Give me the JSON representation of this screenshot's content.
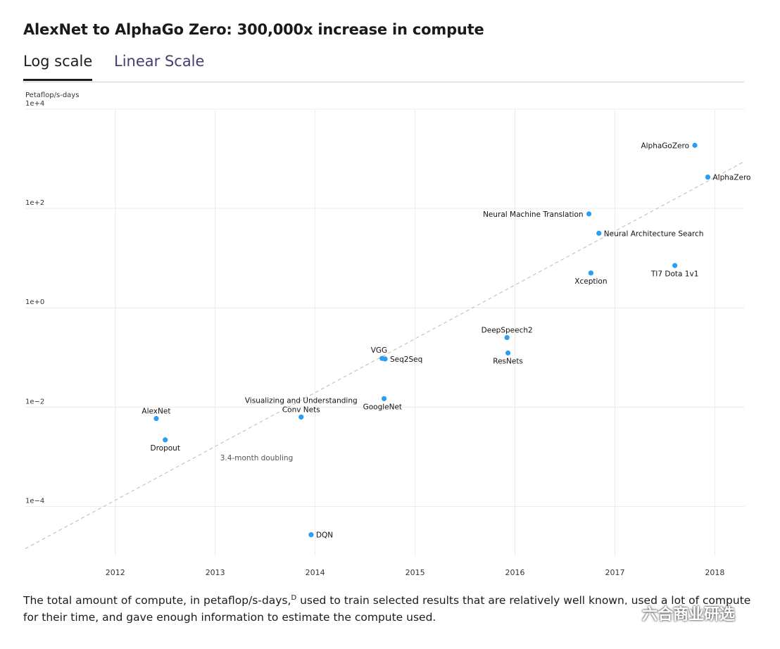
{
  "title": "AlexNet to AlphaGo Zero: 300,000x increase in compute",
  "tabs": [
    {
      "label": "Log scale",
      "active": true
    },
    {
      "label": "Linear Scale",
      "active": false
    }
  ],
  "chart_data": {
    "type": "scatter",
    "ylabel": "Petaflop/s-days",
    "yscale": "log",
    "ylim_exp": [
      -5.0,
      4
    ],
    "xlim": [
      2011.1,
      2018.3
    ],
    "x_ticks": [
      2012,
      2013,
      2014,
      2015,
      2016,
      2017,
      2018
    ],
    "y_ticks": [
      {
        "exp": 4,
        "label": "1e+4"
      },
      {
        "exp": 2,
        "label": "1e+2"
      },
      {
        "exp": 0,
        "label": "1e+0"
      },
      {
        "exp": -2,
        "label": "1e−2"
      },
      {
        "exp": -4,
        "label": "1e−4"
      }
    ],
    "point_color": "#2a9df4",
    "points": [
      {
        "name": "AlexNet",
        "x": 2012.41,
        "log10": -2.23,
        "label_pos": "above"
      },
      {
        "name": "Dropout",
        "x": 2012.5,
        "log10": -2.66,
        "label_pos": "below"
      },
      {
        "name": "Visualizing and Understanding Conv Nets",
        "lines": [
          "Visualizing and Understanding",
          "Conv Nets"
        ],
        "x": 2013.86,
        "log10": -2.2,
        "label_pos": "above"
      },
      {
        "name": "DQN",
        "x": 2013.96,
        "log10": -4.57,
        "label_pos": "right"
      },
      {
        "name": "GoogleNet",
        "x": 2014.69,
        "log10": -1.83,
        "label_pos": "below-right"
      },
      {
        "name": "VGG",
        "x": 2014.67,
        "log10": -1.02,
        "label_pos": "above-left"
      },
      {
        "name": "Seq2Seq",
        "x": 2014.7,
        "log10": -1.03,
        "label_pos": "right"
      },
      {
        "name": "DeepSpeech2",
        "x": 2015.92,
        "log10": -0.6,
        "label_pos": "above"
      },
      {
        "name": "ResNets",
        "x": 2015.93,
        "log10": -0.91,
        "label_pos": "below"
      },
      {
        "name": "Xception",
        "x": 2016.76,
        "log10": 0.7,
        "label_pos": "below"
      },
      {
        "name": "Neural Machine Translation",
        "x": 2016.74,
        "log10": 1.89,
        "label_pos": "left"
      },
      {
        "name": "Neural Architecture Search",
        "x": 2016.84,
        "log10": 1.5,
        "label_pos": "right"
      },
      {
        "name": "TI7 Dota 1v1",
        "x": 2017.6,
        "log10": 0.85,
        "label_pos": "below"
      },
      {
        "name": "AlphaGoZero",
        "x": 2017.8,
        "log10": 3.27,
        "label_pos": "left"
      },
      {
        "name": "AlphaZero",
        "x": 2017.93,
        "log10": 2.63,
        "label_pos": "right"
      }
    ],
    "trend": {
      "label": "3.4-month doubling",
      "from": [
        2011.1,
        -4.85
      ],
      "to": [
        2018.3,
        2.95
      ]
    }
  },
  "caption": {
    "part1": "The total amount of compute, in petaflop/s-days,",
    "footnote": "D",
    "part2": " used to train selected results that are relatively well known, used a lot of compute for their time, and gave enough information to estimate the compute used."
  },
  "watermark": "六合商业研选"
}
